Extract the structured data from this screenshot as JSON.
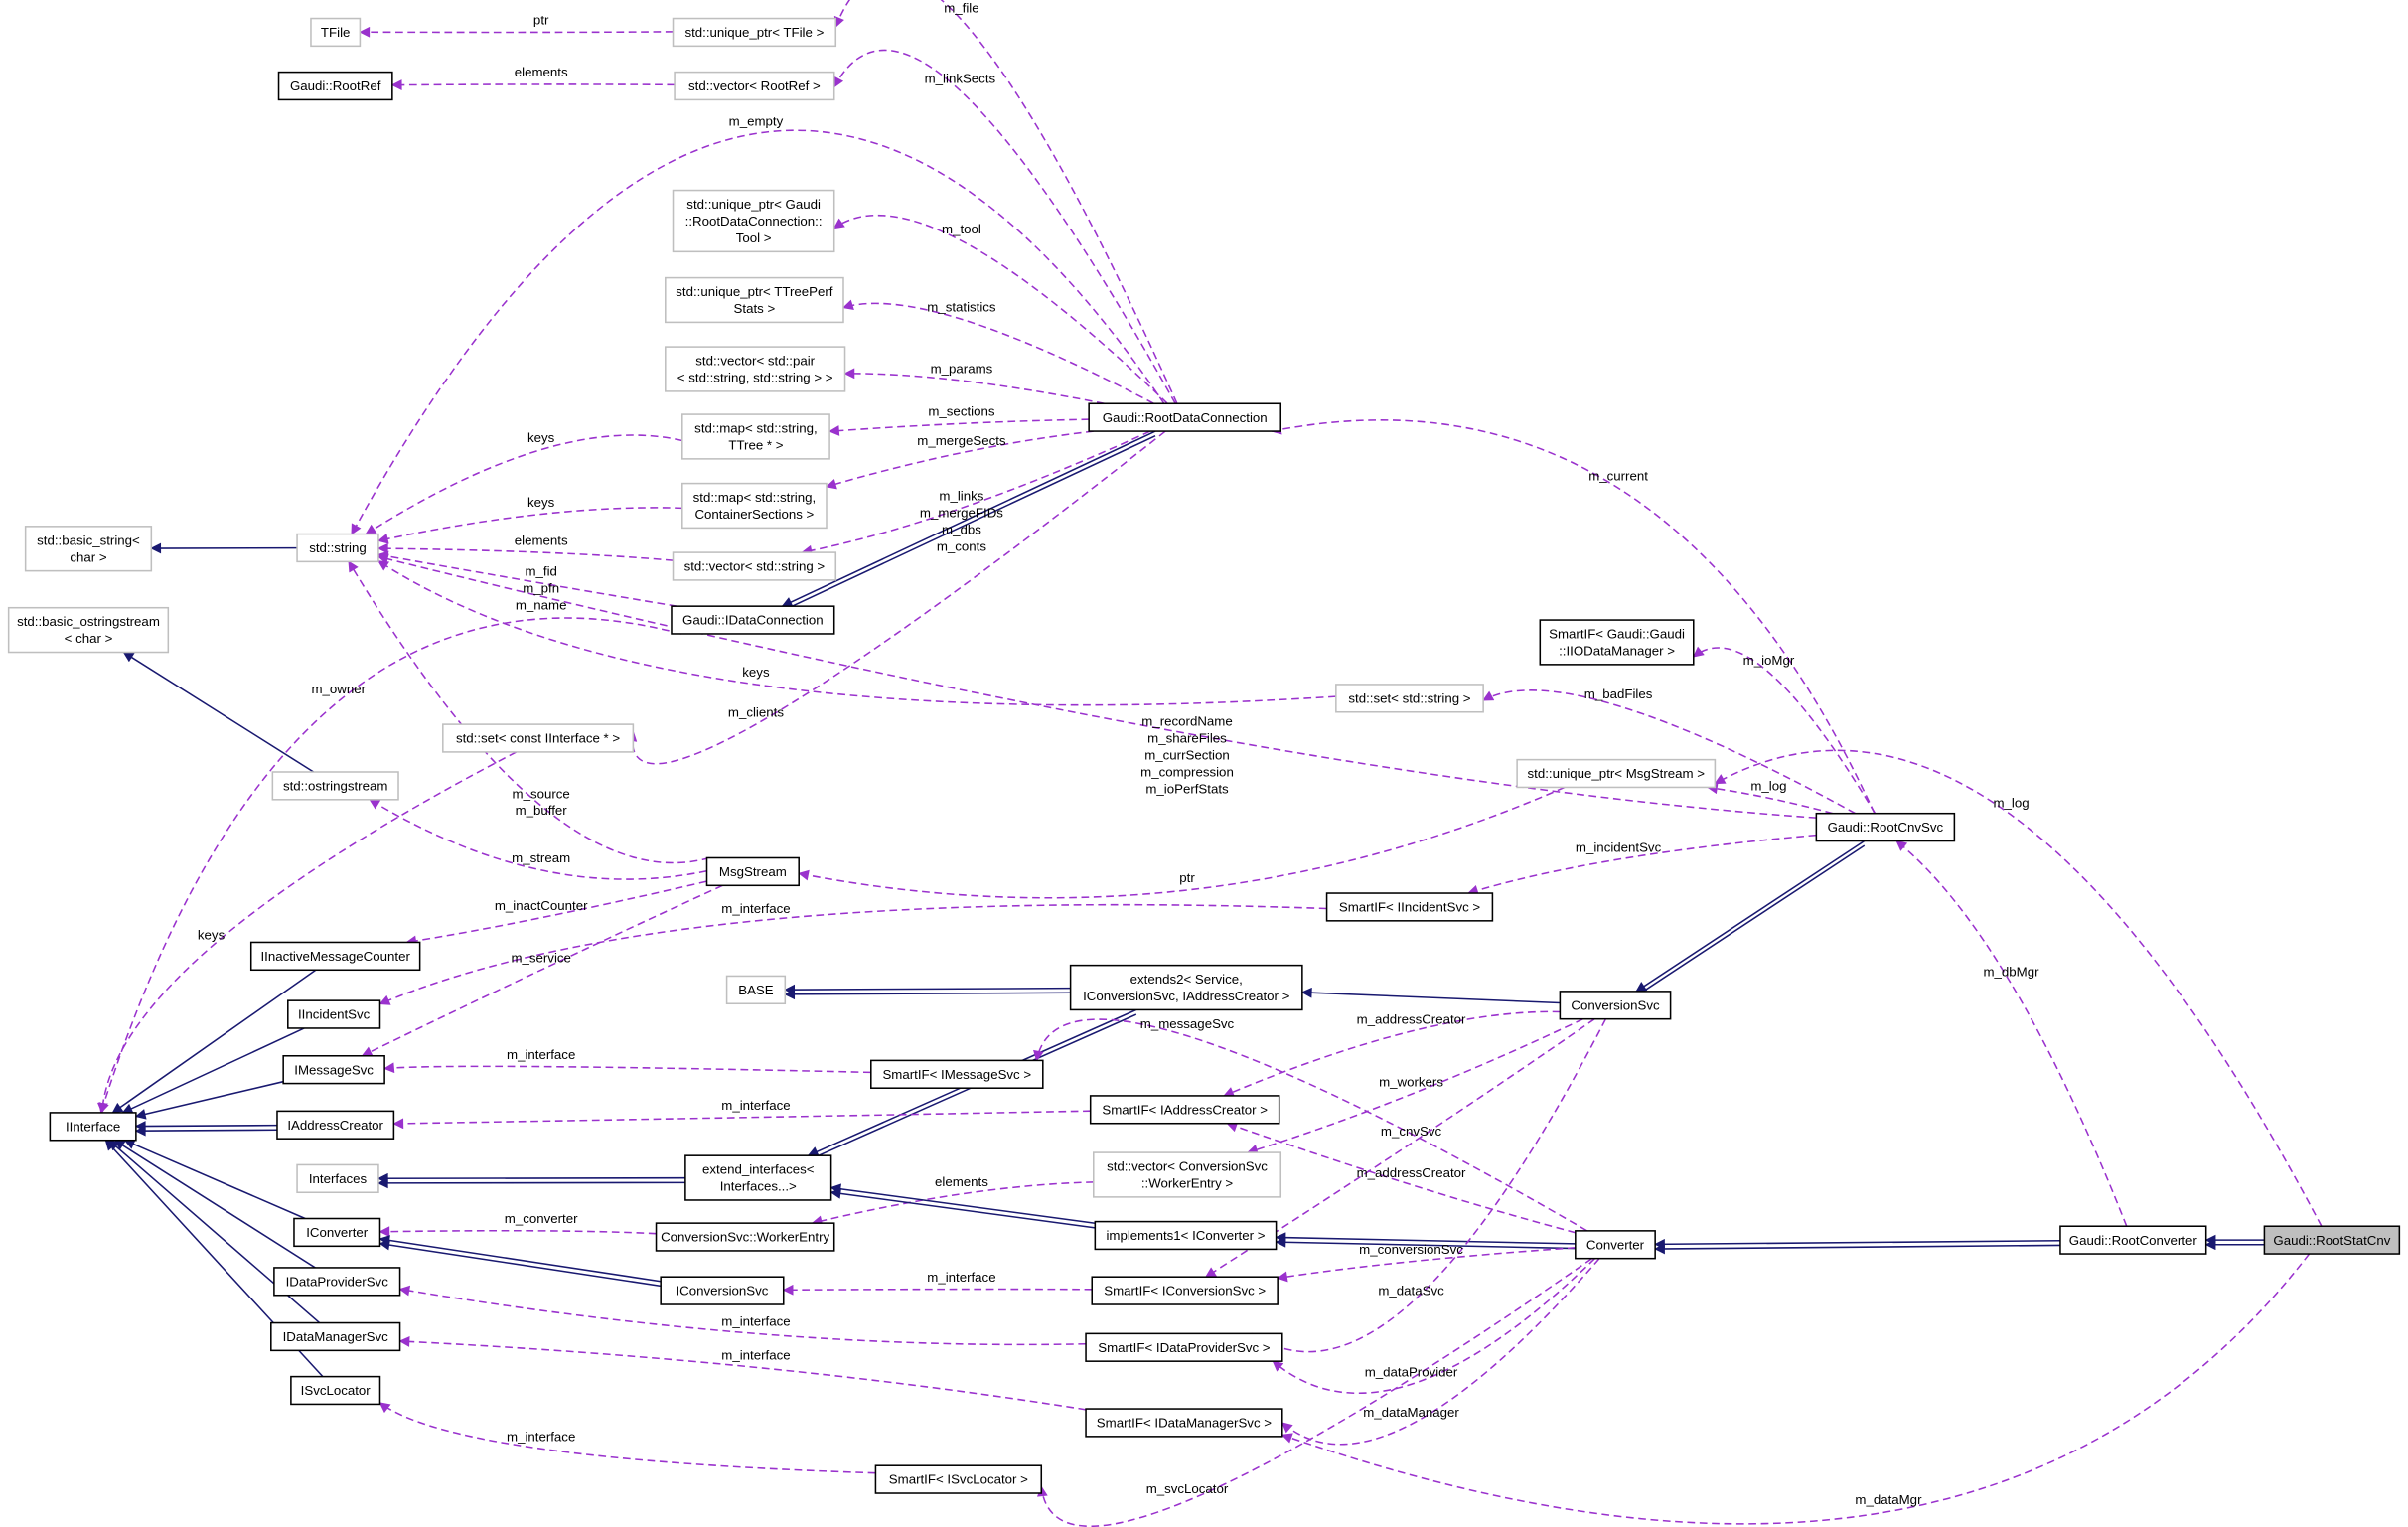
{
  "diagram": {
    "type": "collaboration-graph",
    "colors": {
      "inheritance": "#191970",
      "usage": "#9a32cd",
      "focus_fill": "#bfbfbf",
      "external_border": "#bfbfbf"
    },
    "nodes": [
      {
        "id": "TFile",
        "lines": [
          "TFile"
        ],
        "style": "external"
      },
      {
        "id": "uptrTFile",
        "lines": [
          "std::unique_ptr< TFile >"
        ],
        "style": "external"
      },
      {
        "id": "RootRef",
        "lines": [
          "Gaudi::RootRef"
        ],
        "style": "plain"
      },
      {
        "id": "vecRootRef",
        "lines": [
          "std::vector< RootRef >"
        ],
        "style": "external"
      },
      {
        "id": "uptrTool",
        "lines": [
          "std::unique_ptr< Gaudi",
          "::RootDataConnection::",
          "Tool >"
        ],
        "style": "external"
      },
      {
        "id": "uptrPerf",
        "lines": [
          "std::unique_ptr< TTreePerf",
          "Stats >"
        ],
        "style": "external"
      },
      {
        "id": "vecPair",
        "lines": [
          "std::vector< std::pair",
          "< std::string, std::string > >"
        ],
        "style": "external"
      },
      {
        "id": "mapTTree",
        "lines": [
          "std::map< std::string,",
          "TTree * >"
        ],
        "style": "external"
      },
      {
        "id": "mapCont",
        "lines": [
          "std::map< std::string,",
          "ContainerSections >"
        ],
        "style": "external"
      },
      {
        "id": "vecString",
        "lines": [
          "std::vector< std::string >"
        ],
        "style": "external"
      },
      {
        "id": "RDC",
        "lines": [
          "Gaudi::RootDataConnection"
        ],
        "style": "plain"
      },
      {
        "id": "basicString",
        "lines": [
          "std::basic_string<",
          "char >"
        ],
        "style": "external"
      },
      {
        "id": "stdString",
        "lines": [
          "std::string"
        ],
        "style": "external"
      },
      {
        "id": "basicOss",
        "lines": [
          "std::basic_ostringstream",
          "< char >"
        ],
        "style": "external"
      },
      {
        "id": "IDataConn",
        "lines": [
          "Gaudi::IDataConnection"
        ],
        "style": "plain"
      },
      {
        "id": "setIInterface",
        "lines": [
          "std::set< const IInterface * >"
        ],
        "style": "external"
      },
      {
        "id": "oss",
        "lines": [
          "std::ostringstream"
        ],
        "style": "external"
      },
      {
        "id": "setString",
        "lines": [
          "std::set< std::string >"
        ],
        "style": "external"
      },
      {
        "id": "siIODataMgr",
        "lines": [
          "SmartIF< Gaudi::Gaudi",
          "::IIODataManager >"
        ],
        "style": "plain"
      },
      {
        "id": "uptrMsg",
        "lines": [
          "std::unique_ptr< MsgStream >"
        ],
        "style": "external"
      },
      {
        "id": "RootCnvSvc",
        "lines": [
          "Gaudi::RootCnvSvc"
        ],
        "style": "plain"
      },
      {
        "id": "MsgStream",
        "lines": [
          "MsgStream"
        ],
        "style": "plain"
      },
      {
        "id": "siIncident",
        "lines": [
          "SmartIF< IIncidentSvc >"
        ],
        "style": "plain"
      },
      {
        "id": "IInactive",
        "lines": [
          "IInactiveMessageCounter"
        ],
        "style": "plain"
      },
      {
        "id": "IIncidentSvc",
        "lines": [
          "IIncidentSvc"
        ],
        "style": "plain"
      },
      {
        "id": "BASE",
        "lines": [
          "BASE"
        ],
        "style": "external"
      },
      {
        "id": "extends2",
        "lines": [
          "extends2< Service,",
          "IConversionSvc, IAddressCreator >"
        ],
        "style": "plain"
      },
      {
        "id": "ConversionSvc",
        "lines": [
          "ConversionSvc"
        ],
        "style": "plain"
      },
      {
        "id": "IMessageSvc",
        "lines": [
          "IMessageSvc"
        ],
        "style": "plain"
      },
      {
        "id": "siMsg",
        "lines": [
          "SmartIF< IMessageSvc >"
        ],
        "style": "plain"
      },
      {
        "id": "IAddressCreator",
        "lines": [
          "IAddressCreator"
        ],
        "style": "plain"
      },
      {
        "id": "siAddr",
        "lines": [
          "SmartIF< IAddressCreator >"
        ],
        "style": "plain"
      },
      {
        "id": "IInterface",
        "lines": [
          "IInterface"
        ],
        "style": "plain"
      },
      {
        "id": "Interfaces",
        "lines": [
          "Interfaces"
        ],
        "style": "external"
      },
      {
        "id": "extendIf",
        "lines": [
          "extend_interfaces<",
          "Interfaces...>"
        ],
        "style": "plain"
      },
      {
        "id": "vecWorker",
        "lines": [
          "std::vector< ConversionSvc",
          "::WorkerEntry >"
        ],
        "style": "external"
      },
      {
        "id": "IConverter",
        "lines": [
          "IConverter"
        ],
        "style": "plain"
      },
      {
        "id": "WorkerEntry",
        "lines": [
          "ConversionSvc::WorkerEntry"
        ],
        "style": "plain"
      },
      {
        "id": "impl1",
        "lines": [
          "implements1< IConverter >"
        ],
        "style": "plain"
      },
      {
        "id": "Converter",
        "lines": [
          "Converter"
        ],
        "style": "plain"
      },
      {
        "id": "RootConverter",
        "lines": [
          "Gaudi::RootConverter"
        ],
        "style": "plain"
      },
      {
        "id": "RootStatCnv",
        "lines": [
          "Gaudi::RootStatCnv"
        ],
        "style": "focus"
      },
      {
        "id": "IConversionSvc",
        "lines": [
          "IConversionSvc"
        ],
        "style": "plain"
      },
      {
        "id": "siCnv",
        "lines": [
          "SmartIF< IConversionSvc >"
        ],
        "style": "plain"
      },
      {
        "id": "IDataProviderSvc",
        "lines": [
          "IDataProviderSvc"
        ],
        "style": "plain"
      },
      {
        "id": "siDP",
        "lines": [
          "SmartIF< IDataProviderSvc >"
        ],
        "style": "plain"
      },
      {
        "id": "IDataManagerSvc",
        "lines": [
          "IDataManagerSvc"
        ],
        "style": "plain"
      },
      {
        "id": "siDM",
        "lines": [
          "SmartIF< IDataManagerSvc >"
        ],
        "style": "plain"
      },
      {
        "id": "ISvcLocator",
        "lines": [
          "ISvcLocator"
        ],
        "style": "plain"
      },
      {
        "id": "siSvcLoc",
        "lines": [
          "SmartIF< ISvcLocator >"
        ],
        "style": "plain"
      }
    ],
    "edges": [
      {
        "from": "uptrTFile",
        "to": "TFile",
        "kind": "usage",
        "labels": [
          "ptr"
        ]
      },
      {
        "from": "vecRootRef",
        "to": "RootRef",
        "kind": "usage",
        "labels": [
          "elements"
        ]
      },
      {
        "from": "RDC",
        "to": "uptrTFile",
        "kind": "usage",
        "labels": [
          "m_file"
        ]
      },
      {
        "from": "RDC",
        "to": "vecRootRef",
        "kind": "usage",
        "labels": [
          "m_linkSects"
        ]
      },
      {
        "from": "RDC",
        "to": "stdString",
        "kind": "usage",
        "labels": [
          "m_empty"
        ]
      },
      {
        "from": "RDC",
        "to": "uptrTool",
        "kind": "usage",
        "labels": [
          "m_tool"
        ]
      },
      {
        "from": "RDC",
        "to": "uptrPerf",
        "kind": "usage",
        "labels": [
          "m_statistics"
        ]
      },
      {
        "from": "RDC",
        "to": "vecPair",
        "kind": "usage",
        "labels": [
          "m_params"
        ]
      },
      {
        "from": "RDC",
        "to": "mapTTree",
        "kind": "usage",
        "labels": [
          "m_sections"
        ]
      },
      {
        "from": "RDC",
        "to": "mapCont",
        "kind": "usage",
        "labels": [
          "m_mergeSects"
        ]
      },
      {
        "from": "RDC",
        "to": "vecString",
        "kind": "usage",
        "labels": [
          "m_links",
          "m_mergeFIDs",
          "m_dbs",
          "m_conts"
        ]
      },
      {
        "from": "RDC",
        "to": "IDataConn",
        "kind": "inheritance",
        "labels": []
      },
      {
        "from": "RDC",
        "to": "IDataConn",
        "kind": "inheritance",
        "labels": []
      },
      {
        "from": "mapTTree",
        "to": "stdString",
        "kind": "usage",
        "labels": [
          "keys"
        ]
      },
      {
        "from": "mapCont",
        "to": "stdString",
        "kind": "usage",
        "labels": [
          "keys"
        ]
      },
      {
        "from": "vecString",
        "to": "stdString",
        "kind": "usage",
        "labels": [
          "elements"
        ]
      },
      {
        "from": "IDataConn",
        "to": "stdString",
        "kind": "usage",
        "labels": [
          "m_fid",
          "m_pfn",
          "m_name"
        ]
      },
      {
        "from": "stdString",
        "to": "basicString",
        "kind": "inheritance",
        "labels": []
      },
      {
        "from": "oss",
        "to": "basicOss",
        "kind": "inheritance",
        "labels": []
      },
      {
        "from": "IDataConn",
        "to": "IInterface",
        "kind": "usage",
        "labels": [
          "m_owner"
        ]
      },
      {
        "from": "RDC",
        "to": "setIInterface",
        "kind": "usage",
        "labels": [
          "m_clients"
        ]
      },
      {
        "from": "setString",
        "to": "stdString",
        "kind": "usage",
        "labels": [
          "keys"
        ]
      },
      {
        "from": "RootCnvSvc",
        "to": "setString",
        "kind": "usage",
        "labels": [
          "m_badFiles"
        ]
      },
      {
        "from": "RootCnvSvc",
        "to": "siIODataMgr",
        "kind": "usage",
        "labels": [
          "m_ioMgr"
        ]
      },
      {
        "from": "RootCnvSvc",
        "to": "uptrMsg",
        "kind": "usage",
        "labels": [
          "m_log"
        ]
      },
      {
        "from": "RootStatCnv",
        "to": "uptrMsg",
        "kind": "usage",
        "labels": [
          "m_log"
        ]
      },
      {
        "from": "RootCnvSvc",
        "to": "RDC",
        "kind": "usage",
        "labels": [
          "m_current"
        ]
      },
      {
        "from": "RootCnvSvc",
        "to": "stdString",
        "kind": "usage",
        "labels": [
          "m_recordName",
          "m_shareFiles",
          "m_currSection",
          "m_compression",
          "m_ioPerfStats"
        ]
      },
      {
        "from": "uptrMsg",
        "to": "MsgStream",
        "kind": "usage",
        "labels": [
          "ptr"
        ]
      },
      {
        "from": "MsgStream",
        "to": "stdString",
        "kind": "usage",
        "labels": [
          "m_source",
          "m_buffer"
        ]
      },
      {
        "from": "MsgStream",
        "to": "oss",
        "kind": "usage",
        "labels": [
          "m_stream"
        ]
      },
      {
        "from": "MsgStream",
        "to": "IInactive",
        "kind": "usage",
        "labels": [
          "m_inactCounter"
        ]
      },
      {
        "from": "MsgStream",
        "to": "IMessageSvc",
        "kind": "usage",
        "labels": [
          "m_service"
        ]
      },
      {
        "from": "setIInterface",
        "to": "IInterface",
        "kind": "usage",
        "labels": [
          "keys"
        ]
      },
      {
        "from": "RootCnvSvc",
        "to": "siIncident",
        "kind": "usage",
        "labels": [
          "m_incidentSvc"
        ]
      },
      {
        "from": "siIncident",
        "to": "IIncidentSvc",
        "kind": "usage",
        "labels": [
          "m_interface"
        ]
      },
      {
        "from": "RootCnvSvc",
        "to": "ConversionSvc",
        "kind": "inheritance",
        "labels": []
      },
      {
        "from": "RootCnvSvc",
        "to": "ConversionSvc",
        "kind": "inheritance",
        "labels": []
      },
      {
        "from": "ConversionSvc",
        "to": "extends2",
        "kind": "inheritance",
        "labels": []
      },
      {
        "from": "extends2",
        "to": "BASE",
        "kind": "inheritance",
        "labels": []
      },
      {
        "from": "extends2",
        "to": "BASE",
        "kind": "inheritance",
        "labels": []
      },
      {
        "from": "extends2",
        "to": "extendIf",
        "kind": "inheritance",
        "labels": []
      },
      {
        "from": "extends2",
        "to": "extendIf",
        "kind": "inheritance",
        "labels": []
      },
      {
        "from": "siMsg",
        "to": "IMessageSvc",
        "kind": "usage",
        "labels": [
          "m_interface"
        ]
      },
      {
        "from": "Converter",
        "to": "siMsg",
        "kind": "usage",
        "labels": [
          "m_messageSvc"
        ]
      },
      {
        "from": "ConversionSvc",
        "to": "siAddr",
        "kind": "usage",
        "labels": [
          "m_addressCreator"
        ]
      },
      {
        "from": "siAddr",
        "to": "IAddressCreator",
        "kind": "usage",
        "labels": [
          "m_interface"
        ]
      },
      {
        "from": "ConversionSvc",
        "to": "vecWorker",
        "kind": "usage",
        "labels": [
          "m_workers"
        ]
      },
      {
        "from": "ConversionSvc",
        "to": "siCnv",
        "kind": "usage",
        "labels": [
          "m_cnvSvc"
        ]
      },
      {
        "from": "Converter",
        "to": "siAddr",
        "kind": "usage",
        "labels": [
          "m_addressCreator"
        ]
      },
      {
        "from": "vecWorker",
        "to": "WorkerEntry",
        "kind": "usage",
        "labels": [
          "elements"
        ]
      },
      {
        "from": "WorkerEntry",
        "to": "IConverter",
        "kind": "usage",
        "labels": [
          "m_converter"
        ]
      },
      {
        "from": "IConversionSvc",
        "to": "IConverter",
        "kind": "inheritance",
        "labels": []
      },
      {
        "from": "IConversionSvc",
        "to": "IConverter",
        "kind": "inheritance",
        "labels": []
      },
      {
        "from": "extendIf",
        "to": "Interfaces",
        "kind": "inheritance",
        "labels": []
      },
      {
        "from": "extendIf",
        "to": "Interfaces",
        "kind": "inheritance",
        "labels": []
      },
      {
        "from": "impl1",
        "to": "extendIf",
        "kind": "inheritance",
        "labels": []
      },
      {
        "from": "impl1",
        "to": "extendIf",
        "kind": "inheritance",
        "labels": []
      },
      {
        "from": "Converter",
        "to": "impl1",
        "kind": "inheritance",
        "labels": []
      },
      {
        "from": "Converter",
        "to": "impl1",
        "kind": "inheritance",
        "labels": []
      },
      {
        "from": "RootConverter",
        "to": "Converter",
        "kind": "inheritance",
        "labels": []
      },
      {
        "from": "RootConverter",
        "to": "Converter",
        "kind": "inheritance",
        "labels": []
      },
      {
        "from": "RootStatCnv",
        "to": "RootConverter",
        "kind": "inheritance",
        "labels": []
      },
      {
        "from": "RootStatCnv",
        "to": "RootConverter",
        "kind": "inheritance",
        "labels": []
      },
      {
        "from": "Converter",
        "to": "siCnv",
        "kind": "usage",
        "labels": [
          "m_conversionSvc"
        ]
      },
      {
        "from": "siCnv",
        "to": "IConversionSvc",
        "kind": "usage",
        "labels": [
          "m_interface"
        ]
      },
      {
        "from": "ConversionSvc",
        "to": "siDP",
        "kind": "usage",
        "labels": [
          "m_dataSvc"
        ]
      },
      {
        "from": "siDP",
        "to": "IDataProviderSvc",
        "kind": "usage",
        "labels": [
          "m_interface"
        ]
      },
      {
        "from": "Converter",
        "to": "siDP",
        "kind": "usage",
        "labels": [
          "m_dataProvider"
        ]
      },
      {
        "from": "siDM",
        "to": "IDataManagerSvc",
        "kind": "usage",
        "labels": [
          "m_interface"
        ]
      },
      {
        "from": "Converter",
        "to": "siDM",
        "kind": "usage",
        "labels": [
          "m_dataManager"
        ]
      },
      {
        "from": "RootStatCnv",
        "to": "siDM",
        "kind": "usage",
        "labels": [
          "m_dataMgr"
        ]
      },
      {
        "from": "siSvcLoc",
        "to": "ISvcLocator",
        "kind": "usage",
        "labels": [
          "m_interface"
        ]
      },
      {
        "from": "Converter",
        "to": "siSvcLoc",
        "kind": "usage",
        "labels": [
          "m_svcLocator"
        ]
      },
      {
        "from": "RootConverter",
        "to": "RootCnvSvc",
        "kind": "usage",
        "labels": [
          "m_dbMgr"
        ]
      },
      {
        "from": "IInactive",
        "to": "IInterface",
        "kind": "inheritance",
        "labels": []
      },
      {
        "from": "IIncidentSvc",
        "to": "IInterface",
        "kind": "inheritance",
        "labels": []
      },
      {
        "from": "IMessageSvc",
        "to": "IInterface",
        "kind": "inheritance",
        "labels": []
      },
      {
        "from": "IAddressCreator",
        "to": "IInterface",
        "kind": "inheritance",
        "labels": []
      },
      {
        "from": "IAddressCreator",
        "to": "IInterface",
        "kind": "inheritance",
        "labels": []
      },
      {
        "from": "IConverter",
        "to": "IInterface",
        "kind": "inheritance",
        "labels": []
      },
      {
        "from": "IDataProviderSvc",
        "to": "IInterface",
        "kind": "inheritance",
        "labels": []
      },
      {
        "from": "IDataManagerSvc",
        "to": "IInterface",
        "kind": "inheritance",
        "labels": []
      },
      {
        "from": "ISvcLocator",
        "to": "IInterface",
        "kind": "inheritance",
        "labels": []
      }
    ]
  }
}
